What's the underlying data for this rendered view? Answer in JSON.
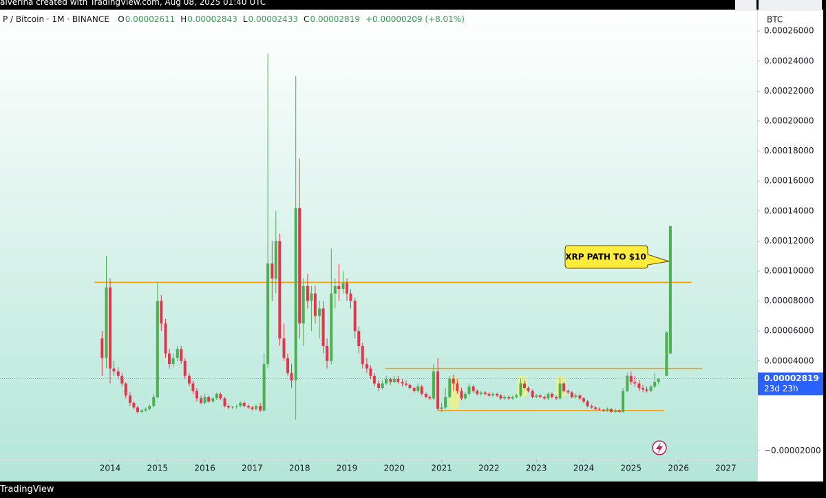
{
  "chart_data": {
    "type": "candlestick",
    "watermark": "alverina created with TradingView.com, Aug 08, 2025 01:40 UTC",
    "brand": "TradingView",
    "symbol": "P / Bitcoin · 1M · BINANCE",
    "ohlc": [
      {
        "label": "O",
        "value": "0.00002611"
      },
      {
        "label": "H",
        "value": "0.00002843"
      },
      {
        "label": "L",
        "value": "0.00002433"
      },
      {
        "label": "C",
        "value": "0.00002819"
      }
    ],
    "change": "+0.00000209 (+8.01%)",
    "currency": "BTC",
    "annotation": "XRP PATH TO $10",
    "high": [
      6e-05,
      0.00011,
      9.5e-05,
      4e-05,
      3.6e-05,
      3.2e-05,
      2.6e-05,
      1.9e-05,
      1.3e-05,
      1e-05,
      8e-06,
      9e-06,
      1.1e-05,
      1.8e-05,
      9.3e-05,
      8.4e-05,
      6.8e-05,
      4.8e-05,
      4.5e-05,
      5e-05,
      5e-05,
      4.2e-05,
      3.2e-05,
      2.7e-05,
      2.2e-05,
      1.7e-05,
      1.8e-05,
      1.7e-05,
      1.6e-05,
      1.9e-05,
      1.9e-05,
      1.6e-05,
      1.1e-05,
      1e-05,
      1.1e-05,
      1.3e-05,
      1.3e-05,
      1.1e-05,
      1e-05,
      1.1e-05,
      1.2e-05,
      4.5e-05,
      0.000245,
      0.00012,
      0.00014,
      0.000125,
      6.5e-05,
      4.5e-05,
      3.8e-05,
      0.00023,
      0.000175,
      9.5e-05,
      9.8e-05,
      9e-05,
      9e-05,
      8e-05,
      8e-05,
      5.5e-05,
      0.000115,
      9.5e-05,
      0.000105,
      0.0001,
      9.5e-05,
      8.8e-05,
      8.2e-05,
      6.3e-05,
      5.2e-05,
      4.2e-05,
      3.7e-05,
      3.2e-05,
      2.7e-05,
      2.7e-05,
      3e-05,
      2.9e-05,
      3e-05,
      3e-05,
      2.8e-05,
      2.7e-05,
      2.5e-05,
      2.3e-05,
      2.5e-05,
      2.4e-05,
      1.9e-05,
      1.7e-05,
      3.8e-05,
      4.2e-05,
      1.2e-05,
      2.2e-05,
      3e-05,
      3.1e-05,
      2.8e-05,
      2.2e-05,
      1.9e-05,
      2.5e-05,
      2.4e-05,
      2.1e-05,
      2e-05,
      2e-05,
      1.9e-05,
      1.9e-05,
      1.9e-05,
      1.8e-05,
      1.7e-05,
      1.7e-05,
      1.7e-05,
      1.8e-05,
      2.8e-05,
      2.7e-05,
      2.3e-05,
      2.1e-05,
      1.8e-05,
      1.8e-05,
      1.7e-05,
      1.9e-05,
      1.9e-05,
      1.7e-05,
      2.9e-05,
      2.6e-05,
      2.1e-05,
      2e-05,
      1.8e-05,
      1.8e-05,
      1.6e-05,
      1.4e-05,
      1.1e-05,
      1e-05,
      9e-06,
      8e-06,
      9e-06,
      8.5e-06,
      8e-06,
      7.5e-06,
      2.2e-05,
      3.2e-05,
      3.3e-05,
      3e-05,
      2.7e-05,
      2.4e-05,
      2.3e-05,
      2.4e-05,
      3.2e-05,
      2.843e-05,
      6e-05,
      0.00013
    ],
    "low": [
      3e-05,
      3.5e-05,
      2.5e-05,
      3e-05,
      2.8e-05,
      2.3e-05,
      1.5e-05,
      1e-05,
      8e-06,
      5e-06,
      5e-06,
      6e-06,
      7e-06,
      9e-06,
      1.5e-05,
      6e-05,
      4.2e-05,
      3.5e-05,
      3.6e-05,
      4e-05,
      3.8e-05,
      2.8e-05,
      2.3e-05,
      1.8e-05,
      1.3e-05,
      1.1e-05,
      1.1e-05,
      1.2e-05,
      1.2e-05,
      1.4e-05,
      1.4e-05,
      9e-06,
      8e-06,
      8e-06,
      8e-06,
      9e-06,
      9e-06,
      8e-06,
      7e-06,
      7e-06,
      6e-06,
      6e-06,
      3.5e-05,
      8e-05,
      8.5e-05,
      5e-05,
      4e-05,
      3e-05,
      2.2e-05,
      1e-06,
      5.5e-05,
      5e-05,
      7.5e-05,
      6e-05,
      6.5e-05,
      5.5e-05,
      4.5e-05,
      3.5e-05,
      3.8e-05,
      7.5e-05,
      8e-05,
      8.5e-05,
      8e-05,
      7.5e-05,
      5.5e-05,
      4.5e-05,
      3.5e-05,
      3.2e-05,
      2.8e-05,
      2.3e-05,
      2e-05,
      2.1e-05,
      2.4e-05,
      2.4e-05,
      2.5e-05,
      2.5e-05,
      2.3e-05,
      2.3e-05,
      2.1e-05,
      1.9e-05,
      1.9e-05,
      1.7e-05,
      1.5e-05,
      1.4e-05,
      1.4e-05,
      7e-06,
      6e-06,
      8e-06,
      1.5e-05,
      2e-05,
      1.8e-05,
      1.4e-05,
      1.4e-05,
      1.7e-05,
      1.9e-05,
      1.7e-05,
      1.7e-05,
      1.7e-05,
      1.6e-05,
      1.6e-05,
      1.6e-05,
      1.4e-05,
      1.4e-05,
      1.4e-05,
      1.4e-05,
      1.5e-05,
      1.6e-05,
      2.1e-05,
      1.9e-05,
      1.5e-05,
      1.5e-05,
      1.5e-05,
      1.4e-05,
      1.4e-05,
      1.5e-05,
      1.4e-05,
      1.4e-05,
      1.9e-05,
      1.8e-05,
      1.5e-05,
      1.5e-05,
      1.4e-05,
      1.2e-05,
      9e-06,
      8e-06,
      7e-06,
      7e-06,
      6e-06,
      6e-06,
      5.5e-06,
      5.5e-06,
      5.5e-06,
      5.5e-06,
      1.9e-05,
      2.4e-05,
      2.3e-05,
      2e-05,
      1.9e-05,
      1.9e-05,
      1.9e-05,
      2.2e-05,
      2.433e-05,
      3e-05,
      4.5e-05
    ],
    "last": {
      "value": 2.819e-05,
      "label": "0.00002819",
      "countdown": "23d 23h"
    },
    "up_color": "#4caf50",
    "down_color": "#e5354d",
    "level_color": "#ff9800",
    "levels": [
      {
        "value": 9.25e-05,
        "x": [
          2013.67,
          2026.28
        ]
      },
      {
        "value": 3.5e-05,
        "x": [
          2019.81,
          2026.5
        ]
      },
      {
        "value": 6.9e-06,
        "x": [
          2020.93,
          2025.7
        ]
      }
    ],
    "xlim": [
      2011.674,
      2027.663
    ],
    "xticks": [
      2014,
      2015,
      2016,
      2017,
      2018,
      2019,
      2020,
      2021,
      2022,
      2023,
      2024,
      2025,
      2026,
      2027
    ],
    "ylim": [
      -2.57e-05,
      0.0002743
    ],
    "yticks": [
      {
        "value": -2e-05,
        "label": "−0.00002000"
      },
      {
        "value": 4e-05,
        "label": "0.00004000"
      },
      {
        "value": 6e-05,
        "label": "0.00006000"
      },
      {
        "value": 8e-05,
        "label": "0.00008000"
      },
      {
        "value": 0.0001,
        "label": "0.00010000"
      },
      {
        "value": 0.00012,
        "label": "0.00012000"
      },
      {
        "value": 0.00014,
        "label": "0.00014000"
      },
      {
        "value": 0.00016,
        "label": "0.00016000"
      },
      {
        "value": 0.00018,
        "label": "0.00018000"
      },
      {
        "value": 0.0002,
        "label": "0.00020000"
      },
      {
        "value": 0.00022,
        "label": "0.00022000"
      },
      {
        "value": 0.00024,
        "label": "0.00024000"
      },
      {
        "value": 0.00026,
        "label": "0.00026000"
      }
    ],
    "x": [
      2013.83,
      2013.92,
      2014,
      2014.08,
      2014.17,
      2014.25,
      2014.33,
      2014.42,
      2014.5,
      2014.58,
      2014.67,
      2014.75,
      2014.83,
      2014.92,
      2015,
      2015.08,
      2015.17,
      2015.25,
      2015.33,
      2015.42,
      2015.5,
      2015.58,
      2015.67,
      2015.75,
      2015.83,
      2015.92,
      2016,
      2016.08,
      2016.17,
      2016.25,
      2016.33,
      2016.42,
      2016.5,
      2016.58,
      2016.67,
      2016.75,
      2016.83,
      2016.92,
      2017,
      2017.08,
      2017.17,
      2017.25,
      2017.33,
      2017.42,
      2017.5,
      2017.58,
      2017.67,
      2017.75,
      2017.83,
      2017.92,
      2018,
      2018.08,
      2018.17,
      2018.25,
      2018.33,
      2018.42,
      2018.5,
      2018.58,
      2018.67,
      2018.75,
      2018.83,
      2018.92,
      2019,
      2019.08,
      2019.17,
      2019.25,
      2019.33,
      2019.42,
      2019.5,
      2019.58,
      2019.67,
      2019.75,
      2019.83,
      2019.92,
      2020,
      2020.08,
      2020.17,
      2020.25,
      2020.33,
      2020.42,
      2020.5,
      2020.58,
      2020.67,
      2020.75,
      2020.83,
      2020.92,
      2021,
      2021.08,
      2021.17,
      2021.25,
      2021.33,
      2021.42,
      2021.5,
      2021.58,
      2021.67,
      2021.75,
      2021.83,
      2021.92,
      2022,
      2022.08,
      2022.17,
      2022.25,
      2022.33,
      2022.42,
      2022.5,
      2022.58,
      2022.67,
      2022.75,
      2022.83,
      2022.92,
      2023,
      2023.08,
      2023.17,
      2023.25,
      2023.33,
      2023.42,
      2023.5,
      2023.58,
      2023.67,
      2023.75,
      2023.83,
      2023.92,
      2024,
      2024.08,
      2024.17,
      2024.25,
      2024.33,
      2024.42,
      2024.5,
      2024.58,
      2024.67,
      2024.75,
      2024.83,
      2024.92,
      2025,
      2025.08,
      2025.17,
      2025.25,
      2025.33,
      2025.42,
      2025.5,
      2025.58,
      2025.75,
      2025.83
    ],
    "open": [
      5.5e-05,
      4.2e-05,
      8.9e-05,
      3.5e-05,
      3.3e-05,
      3e-05,
      2.5e-05,
      1.7e-05,
      1.2e-05,
      9e-06,
      6e-06,
      7e-06,
      8e-06,
      1e-05,
      1.6e-05,
      8e-05,
      6.5e-05,
      4.5e-05,
      3.8e-05,
      4.2e-05,
      4.8e-05,
      4e-05,
      3e-05,
      2.5e-05,
      2e-05,
      1.5e-05,
      1.2e-05,
      1.6e-05,
      1.3e-05,
      1.5e-05,
      1.8e-05,
      1.5e-05,
      1e-05,
      9e-06,
      9.5e-06,
      1e-05,
      1.2e-05,
      1e-05,
      9e-06,
      8e-06,
      1e-05,
      7e-06,
      3.8e-05,
      0.000105,
      9.5e-05,
      0.00012,
      5.5e-05,
      4.2e-05,
      3.2e-05,
      2.7e-05,
      0.000142,
      6.5e-05,
      9e-05,
      8e-05,
      8.5e-05,
      7e-05,
      7.5e-05,
      5e-05,
      4e-05,
      8.5e-05,
      9e-05,
      8.8e-05,
      9.2e-05,
      8.5e-05,
      8e-05,
      6e-05,
      5e-05,
      3.8e-05,
      3.5e-05,
      3e-05,
      2.5e-05,
      2.2e-05,
      2.5e-05,
      2.8e-05,
      2.6e-05,
      2.8e-05,
      2.6e-05,
      2.5e-05,
      2.4e-05,
      2.2e-05,
      2e-05,
      2.3e-05,
      1.8e-05,
      1.6e-05,
      1.5e-05,
      3.3e-05,
      8e-06,
      9e-06,
      1.6e-05,
      2.8e-05,
      2.5e-05,
      2e-05,
      1.5e-05,
      1.8e-05,
      2.3e-05,
      2e-05,
      1.8e-05,
      1.9e-05,
      1.8e-05,
      1.7e-05,
      1.8e-05,
      1.7e-05,
      1.5e-05,
      1.6e-05,
      1.5e-05,
      1.6e-05,
      1.7e-05,
      2.5e-05,
      2.2e-05,
      2e-05,
      1.6e-05,
      1.7e-05,
      1.6e-05,
      1.5e-05,
      1.8e-05,
      1.6e-05,
      1.5e-05,
      2.5e-05,
      2e-05,
      1.9e-05,
      1.6e-05,
      1.7e-05,
      1.5e-05,
      1.3e-05,
      1e-05,
      9e-06,
      8e-06,
      7.5e-06,
      7e-06,
      8e-06,
      6e-06,
      7e-06,
      6e-06,
      2e-05,
      3e-05,
      2.6e-05,
      2.5e-05,
      2.2e-05,
      2.1e-05,
      2e-05,
      2.3e-05,
      2.611e-05,
      3e-05,
      4.5e-05
    ],
    "close": [
      4.2e-05,
      8.9e-05,
      3.5e-05,
      3.3e-05,
      3e-05,
      2.5e-05,
      1.7e-05,
      1.2e-05,
      9e-06,
      6e-06,
      7e-06,
      8e-06,
      1e-05,
      1.6e-05,
      8e-05,
      6.5e-05,
      4.5e-05,
      3.8e-05,
      4.2e-05,
      4.8e-05,
      4e-05,
      3e-05,
      2.5e-05,
      2e-05,
      1.5e-05,
      1.2e-05,
      1.6e-05,
      1.3e-05,
      1.5e-05,
      1.8e-05,
      1.5e-05,
      1e-05,
      9e-06,
      9.5e-06,
      1e-05,
      1.2e-05,
      1e-05,
      9e-06,
      8e-06,
      1e-05,
      7e-06,
      3.8e-05,
      0.000105,
      9.5e-05,
      0.00012,
      5.5e-05,
      4.2e-05,
      3.2e-05,
      2.7e-05,
      0.000142,
      6.5e-05,
      9e-05,
      8e-05,
      8.5e-05,
      7e-05,
      7.5e-05,
      5e-05,
      4e-05,
      8.5e-05,
      9e-05,
      8.8e-05,
      9.2e-05,
      8.5e-05,
      8e-05,
      6e-05,
      5e-05,
      3.8e-05,
      3.5e-05,
      3e-05,
      2.5e-05,
      2.2e-05,
      2.5e-05,
      2.8e-05,
      2.6e-05,
      2.8e-05,
      2.6e-05,
      2.5e-05,
      2.4e-05,
      2.2e-05,
      2e-05,
      2.3e-05,
      1.8e-05,
      1.6e-05,
      1.5e-05,
      3.3e-05,
      8e-06,
      9e-06,
      1.6e-05,
      2.8e-05,
      2.5e-05,
      2e-05,
      1.5e-05,
      1.8e-05,
      2.3e-05,
      2e-05,
      1.8e-05,
      1.9e-05,
      1.8e-05,
      1.7e-05,
      1.8e-05,
      1.7e-05,
      1.5e-05,
      1.6e-05,
      1.5e-05,
      1.6e-05,
      1.7e-05,
      2.5e-05,
      2.2e-05,
      2e-05,
      1.6e-05,
      1.7e-05,
      1.6e-05,
      1.5e-05,
      1.8e-05,
      1.6e-05,
      1.5e-05,
      2.5e-05,
      2e-05,
      1.9e-05,
      1.6e-05,
      1.7e-05,
      1.5e-05,
      1.3e-05,
      1e-05,
      9e-06,
      8e-06,
      7.5e-06,
      7e-06,
      8e-06,
      6e-06,
      7e-06,
      6e-06,
      2e-05,
      3e-05,
      2.6e-05,
      2.5e-05,
      2.2e-05,
      2.1e-05,
      2e-05,
      2.3e-05,
      2.611e-05,
      2.819e-05,
      5.9e-05,
      0.00013
    ]
  }
}
